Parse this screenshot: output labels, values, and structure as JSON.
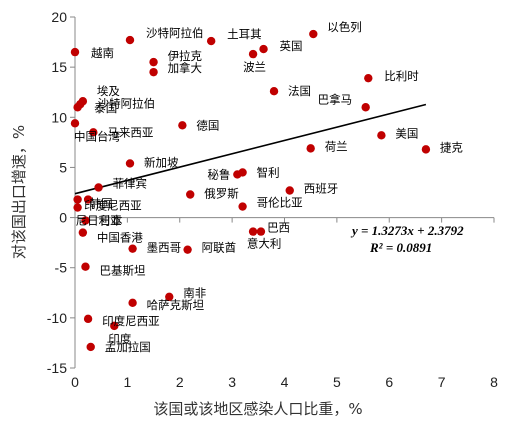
{
  "chart_data": {
    "type": "scatter",
    "xlabel": "该国或该地区感染人口比重，%",
    "ylabel": "对该国出口增速，%",
    "xlim": [
      0,
      8
    ],
    "ylim": [
      -15,
      20
    ],
    "xticks": [
      "0",
      "1",
      "2",
      "3",
      "4",
      "5",
      "6",
      "7",
      "8"
    ],
    "yticks": [
      "20",
      "15",
      "10",
      "5",
      "0",
      "-5",
      "-10",
      "-15"
    ],
    "grid": false,
    "marker_color": "#c00000",
    "trendline": {
      "slope": 1.3273,
      "intercept": 2.3792,
      "color": "#000000"
    },
    "equation": "y = 1.3273x + 2.3792",
    "r_squared": "R² = 0.0891",
    "points": [
      {
        "label": "越南",
        "x": 0.0,
        "y": 16.5
      },
      {
        "label": "沙特阿拉伯",
        "x": 1.05,
        "y": 17.7
      },
      {
        "label": "土耳其",
        "x": 2.6,
        "y": 17.6
      },
      {
        "label": "以色列",
        "x": 4.55,
        "y": 18.3
      },
      {
        "label": "英国",
        "x": 3.6,
        "y": 16.8
      },
      {
        "label": "伊拉克",
        "x": 1.5,
        "y": 15.5
      },
      {
        "label": "加拿大",
        "x": 1.5,
        "y": 14.5
      },
      {
        "label": "波兰",
        "x": 3.4,
        "y": 16.3
      },
      {
        "label": "比利时",
        "x": 5.6,
        "y": 13.9
      },
      {
        "label": "法国",
        "x": 3.8,
        "y": 12.6
      },
      {
        "label": "巴拿马",
        "x": 5.55,
        "y": 11.0
      },
      {
        "label": "埃及",
        "x": 0.15,
        "y": 11.6
      },
      {
        "label": "沙特阿拉伯",
        "x": 0.05,
        "y": 11.0
      },
      {
        "label": "泰国",
        "x": 0.1,
        "y": 11.3
      },
      {
        "label": "中国台湾",
        "x": 0.0,
        "y": 9.4
      },
      {
        "label": "马来西亚",
        "x": 0.35,
        "y": 8.5
      },
      {
        "label": "德国",
        "x": 2.05,
        "y": 9.2
      },
      {
        "label": "美国",
        "x": 5.85,
        "y": 8.2
      },
      {
        "label": "荷兰",
        "x": 4.5,
        "y": 6.9
      },
      {
        "label": "捷克",
        "x": 6.7,
        "y": 6.8
      },
      {
        "label": "新加坡",
        "x": 1.05,
        "y": 5.4
      },
      {
        "label": "秘鲁",
        "x": 3.1,
        "y": 4.3
      },
      {
        "label": "智利",
        "x": 3.2,
        "y": 4.5
      },
      {
        "label": "菲律宾",
        "x": 0.45,
        "y": 3.0
      },
      {
        "label": "西班牙",
        "x": 4.1,
        "y": 2.7
      },
      {
        "label": "俄罗斯",
        "x": 2.2,
        "y": 2.3
      },
      {
        "label": "韩国",
        "x": 0.05,
        "y": 1.8
      },
      {
        "label": "印度尼西亚",
        "x": 0.25,
        "y": 1.8
      },
      {
        "label": "尼日利亚",
        "x": 0.05,
        "y": 1.0
      },
      {
        "label": "哥伦比亚",
        "x": 3.2,
        "y": 1.1
      },
      {
        "label": "日本",
        "x": 0.2,
        "y": -0.3
      },
      {
        "label": "中国香港",
        "x": 0.15,
        "y": -1.5
      },
      {
        "label": "巴西",
        "x": 3.4,
        "y": -1.4
      },
      {
        "label": "墨西哥",
        "x": 1.1,
        "y": -3.1
      },
      {
        "label": "阿联酋",
        "x": 2.15,
        "y": -3.2
      },
      {
        "label": "意大利",
        "x": 3.55,
        "y": -1.4
      },
      {
        "label": "巴基斯坦",
        "x": 0.2,
        "y": -4.9
      },
      {
        "label": "南非",
        "x": 1.8,
        "y": -7.9
      },
      {
        "label": "哈萨克斯坦",
        "x": 1.1,
        "y": -8.5
      },
      {
        "label": "印度尼西亚",
        "x": 0.25,
        "y": -10.1
      },
      {
        "label": "印度",
        "x": 0.75,
        "y": -10.8
      },
      {
        "label": "孟加拉国",
        "x": 0.3,
        "y": -12.9
      }
    ]
  }
}
